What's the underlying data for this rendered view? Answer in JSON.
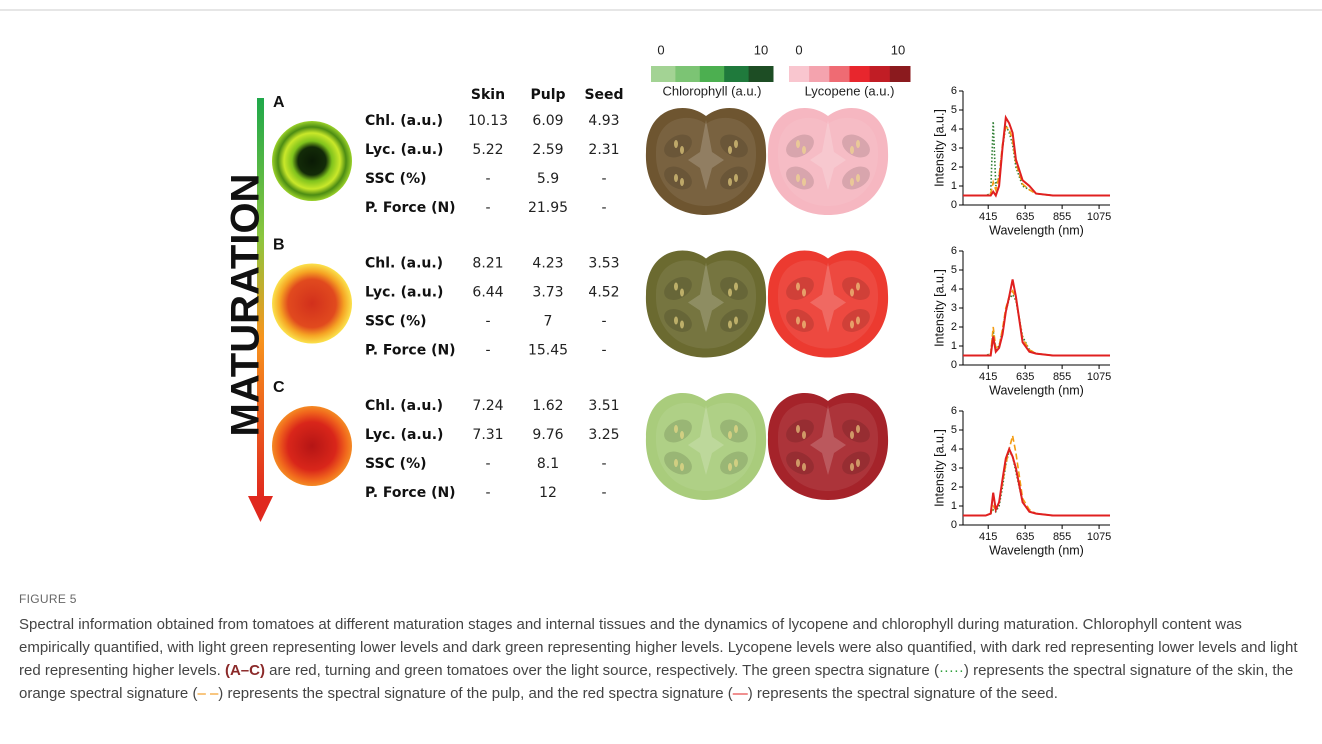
{
  "figure": {
    "label": "FIGURE 5",
    "caption": [
      {
        "text": "Spectral information obtained from tomatoes at different maturation stages and internal tissues and the dynamics of lycopene and chlorophyll during maturation. Chlorophyll content was empirically quantified, with light green representing lower levels and dark green representing higher levels. Lycopene levels were also quantified, with dark red representing lower levels and light red representing higher levels. "
      },
      {
        "text": "(A–C)",
        "bold": true,
        "color": "#8b2a2a"
      },
      {
        "text": " are red, turning and green tomatoes over the light source, respectively. The green spectra signature ("
      },
      {
        "text": "·····",
        "color": "#2e9e3a"
      },
      {
        "text": ") represents the spectral signature of the skin, the orange spectral signature ("
      },
      {
        "text": "– –",
        "color": "#f08c00"
      },
      {
        "text": ") represents the spectral signature of the pulp, and the red spectra signature ("
      },
      {
        "text": "—",
        "color": "#e02020"
      },
      {
        "text": ") represents the spectral signature of the seed."
      }
    ]
  },
  "maturation_label": "MATURATION",
  "columns": [
    "Skin",
    "Pulp",
    "Seed"
  ],
  "stages": [
    {
      "label": "A",
      "rows": [
        {
          "label": "Chl. (a.u.)",
          "values": [
            10.13,
            6.09,
            4.93
          ]
        },
        {
          "label": "Lyc. (a.u.)",
          "values": [
            5.22,
            2.59,
            2.31
          ]
        },
        {
          "label": "SSC (%)",
          "values": [
            "-",
            5.9,
            "-"
          ]
        },
        {
          "label": "P. Force (N)",
          "values": [
            "-",
            21.95,
            "-"
          ]
        }
      ]
    },
    {
      "label": "B",
      "rows": [
        {
          "label": "Chl. (a.u.)",
          "values": [
            8.21,
            4.23,
            3.53
          ]
        },
        {
          "label": "Lyc. (a.u.)",
          "values": [
            6.44,
            3.73,
            4.52
          ]
        },
        {
          "label": "SSC (%)",
          "values": [
            "-",
            7,
            "-"
          ]
        },
        {
          "label": "P. Force (N)",
          "values": [
            "-",
            15.45,
            "-"
          ]
        }
      ]
    },
    {
      "label": "C",
      "rows": [
        {
          "label": "Chl. (a.u.)",
          "values": [
            7.24,
            1.62,
            3.51
          ]
        },
        {
          "label": "Lyc. (a.u.)",
          "values": [
            7.31,
            9.76,
            3.25
          ]
        },
        {
          "label": "SSC (%)",
          "values": [
            "-",
            8.1,
            "-"
          ]
        },
        {
          "label": "P. Force (N)",
          "values": [
            "-",
            12,
            "-"
          ]
        }
      ]
    }
  ],
  "scales": [
    {
      "label": "Chlorophyll (a.u.)",
      "min": 0,
      "max": 10,
      "colors": [
        "#a3d394",
        "#7cc474",
        "#4caf50",
        "#1f7a3c",
        "#1d4d24"
      ]
    },
    {
      "label": "Lycopene (a.u.)",
      "min": 0,
      "max": 10,
      "colors": [
        "#f9c6cf",
        "#f4a3ae",
        "#ef6b73",
        "#e8262d",
        "#c11d25",
        "#8b1a1e"
      ]
    }
  ],
  "chart_data": [
    {
      "type": "line",
      "xlabel": "Wavelength (nm)",
      "ylabel": "Intensity [a.u.]",
      "x": [
        265,
        400,
        430,
        445,
        460,
        480,
        500,
        520,
        540,
        560,
        580,
        620,
        660,
        700,
        800,
        1000,
        1140
      ],
      "xlim": [
        265,
        1140
      ],
      "ylim": [
        0,
        6
      ],
      "xticks": [
        415,
        635,
        855,
        1075
      ],
      "yticks": [
        0,
        1,
        2,
        3,
        4,
        5,
        6
      ],
      "series": [
        {
          "color": "#2e7d32",
          "dash": "dotted",
          "values": [
            0.5,
            0.5,
            0.6,
            4.4,
            1.0,
            1.5,
            3.0,
            4.2,
            3.8,
            3.2,
            2.0,
            1.0,
            0.8,
            0.6,
            0.5,
            0.5,
            0.5
          ]
        },
        {
          "color": "#f39c12",
          "dash": "dashed",
          "values": [
            0.5,
            0.5,
            0.6,
            1.2,
            0.8,
            1.5,
            3.2,
            4.1,
            4.0,
            3.4,
            2.2,
            1.1,
            0.8,
            0.6,
            0.5,
            0.5,
            0.5
          ]
        },
        {
          "color": "#e02020",
          "dash": "solid",
          "values": [
            0.5,
            0.5,
            0.5,
            0.7,
            0.5,
            1.0,
            3.0,
            4.6,
            4.3,
            3.8,
            2.4,
            1.3,
            1.0,
            0.6,
            0.5,
            0.5,
            0.5
          ]
        }
      ]
    },
    {
      "type": "line",
      "xlabel": "Wavelength (nm)",
      "ylabel": "Intensity [a.u.]",
      "x": [
        265,
        400,
        430,
        445,
        460,
        480,
        500,
        520,
        540,
        560,
        580,
        620,
        660,
        700,
        800,
        1000,
        1140
      ],
      "xlim": [
        265,
        1140
      ],
      "ylim": [
        0,
        6
      ],
      "xticks": [
        415,
        635,
        855,
        1075
      ],
      "yticks": [
        0,
        1,
        2,
        3,
        4,
        5,
        6
      ],
      "series": [
        {
          "color": "#2e7d32",
          "dash": "dotted",
          "values": [
            0.5,
            0.5,
            0.6,
            1.8,
            0.8,
            1.0,
            1.8,
            2.8,
            3.5,
            3.7,
            3.4,
            1.5,
            0.8,
            0.6,
            0.5,
            0.5,
            0.5
          ]
        },
        {
          "color": "#f39c12",
          "dash": "dashed",
          "values": [
            0.5,
            0.5,
            0.6,
            2.0,
            0.9,
            1.0,
            1.9,
            3.0,
            3.6,
            3.9,
            3.5,
            1.4,
            0.8,
            0.6,
            0.5,
            0.5,
            0.5
          ]
        },
        {
          "color": "#e02020",
          "dash": "solid",
          "values": [
            0.5,
            0.5,
            0.5,
            1.5,
            0.7,
            0.9,
            1.6,
            2.8,
            3.6,
            4.5,
            3.6,
            1.2,
            0.7,
            0.6,
            0.5,
            0.5,
            0.5
          ]
        }
      ]
    },
    {
      "type": "line",
      "xlabel": "Wavelength (nm)",
      "ylabel": "Intensity [a.u.]",
      "x": [
        265,
        400,
        430,
        445,
        460,
        480,
        500,
        520,
        540,
        560,
        580,
        620,
        660,
        700,
        800,
        1000,
        1140
      ],
      "xlim": [
        265,
        1140
      ],
      "ylim": [
        0,
        6
      ],
      "xticks": [
        415,
        635,
        855,
        1075
      ],
      "yticks": [
        0,
        1,
        2,
        3,
        4,
        5,
        6
      ],
      "series": [
        {
          "color": "#2e7d32",
          "dash": "dotted",
          "values": [
            0.5,
            0.5,
            0.6,
            0.8,
            0.7,
            1.0,
            2.0,
            3.2,
            3.9,
            3.6,
            2.8,
            1.2,
            0.7,
            0.6,
            0.5,
            0.5,
            0.5
          ]
        },
        {
          "color": "#f39c12",
          "dash": "dashed",
          "values": [
            0.5,
            0.5,
            0.6,
            1.0,
            0.8,
            1.2,
            2.2,
            3.2,
            4.0,
            4.7,
            3.8,
            1.4,
            0.8,
            0.6,
            0.5,
            0.5,
            0.5
          ]
        },
        {
          "color": "#e02020",
          "dash": "solid",
          "values": [
            0.5,
            0.5,
            0.6,
            1.7,
            0.8,
            1.2,
            2.4,
            3.5,
            4.0,
            3.6,
            3.0,
            1.2,
            0.7,
            0.6,
            0.5,
            0.5,
            0.5
          ]
        }
      ]
    }
  ]
}
